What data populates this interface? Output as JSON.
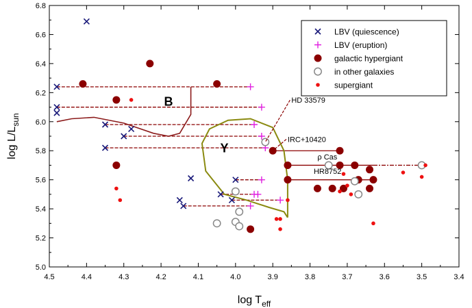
{
  "chart_data": {
    "type": "scatter",
    "xlabel": {
      "main": "log T",
      "sub": "eff"
    },
    "ylabel": {
      "main": "log L/L",
      "sub": "sun"
    },
    "xlim": [
      4.5,
      3.4
    ],
    "ylim": [
      5.0,
      6.8
    ],
    "x_reversed": true,
    "xticks": [
      4.5,
      4.4,
      4.3,
      4.2,
      4.1,
      4.0,
      3.9,
      3.8,
      3.7,
      3.6,
      3.5,
      3.4
    ],
    "xtick_labels": [
      "4.5",
      "4.4",
      "4.3",
      "4.2",
      "4.1",
      "4.0",
      "3.9",
      "3.8",
      "3.7",
      "3.6",
      "3.5",
      "3.4"
    ],
    "yticks": [
      5.0,
      5.2,
      5.4,
      5.6,
      5.8,
      6.0,
      6.2,
      6.4,
      6.6,
      6.8
    ],
    "ytick_labels": [
      "5.0",
      "5.2",
      "5.4",
      "5.6",
      "5.8",
      "6.0",
      "6.2",
      "6.4",
      "6.6",
      "6.8"
    ],
    "legend_position": "top-right",
    "colors": {
      "lbv_quiescence": "#1a1a7a",
      "lbv_eruption": "#e020e0",
      "galactic_hypergiant": "#8b0000",
      "other_galaxies": "#888888",
      "supergiant": "#ee1111",
      "region_b": "#8b1a1a",
      "region_y": "#8a8a10",
      "text": "#000000"
    },
    "series": [
      {
        "name": "LBV (quiescence)",
        "marker": "x",
        "points": [
          [
            4.48,
            6.24
          ],
          [
            4.48,
            6.1
          ],
          [
            4.48,
            6.06
          ],
          [
            4.4,
            6.69
          ],
          [
            4.35,
            5.98
          ],
          [
            4.35,
            5.82
          ],
          [
            4.3,
            5.9
          ],
          [
            4.28,
            5.95
          ],
          [
            4.15,
            5.46
          ],
          [
            4.14,
            5.42
          ],
          [
            4.12,
            5.61
          ],
          [
            4.04,
            5.5
          ],
          [
            4.01,
            5.46
          ],
          [
            4.0,
            5.6
          ]
        ]
      },
      {
        "name": "LBV (eruption)",
        "marker": "plus",
        "points": [
          [
            3.96,
            6.24
          ],
          [
            3.93,
            6.1
          ],
          [
            3.95,
            5.98
          ],
          [
            3.93,
            5.9
          ],
          [
            3.92,
            5.82
          ],
          [
            3.93,
            5.6
          ],
          [
            3.95,
            5.5
          ],
          [
            3.94,
            5.5
          ],
          [
            3.96,
            5.42
          ],
          [
            3.88,
            5.46
          ]
        ]
      },
      {
        "name": "galactic hypergiant",
        "marker": "filled-circle",
        "points": [
          [
            4.41,
            6.26
          ],
          [
            4.32,
            6.15
          ],
          [
            4.32,
            5.7
          ],
          [
            4.23,
            6.4
          ],
          [
            4.05,
            6.26
          ],
          [
            3.9,
            5.8
          ],
          [
            3.86,
            5.7
          ],
          [
            3.86,
            5.6
          ],
          [
            3.72,
            5.8
          ],
          [
            3.72,
            5.7
          ],
          [
            3.68,
            5.7
          ],
          [
            3.64,
            5.67
          ],
          [
            3.63,
            5.6
          ],
          [
            3.67,
            5.6
          ],
          [
            3.78,
            5.54
          ],
          [
            3.74,
            5.54
          ],
          [
            3.71,
            5.54
          ],
          [
            3.64,
            5.54
          ],
          [
            3.96,
            5.26
          ]
        ]
      },
      {
        "name": "in other galaxies",
        "marker": "open-circle",
        "points": [
          [
            4.05,
            5.3
          ],
          [
            4.0,
            5.52
          ],
          [
            3.99,
            5.38
          ],
          [
            4.0,
            5.31
          ],
          [
            3.99,
            5.28
          ],
          [
            3.92,
            5.86
          ],
          [
            3.75,
            5.7
          ],
          [
            3.68,
            5.59
          ],
          [
            3.67,
            5.5
          ],
          [
            3.5,
            5.7
          ]
        ]
      },
      {
        "name": "supergiant",
        "marker": "small-dot",
        "points": [
          [
            4.28,
            6.15
          ],
          [
            4.32,
            5.54
          ],
          [
            4.31,
            5.46
          ],
          [
            3.89,
            5.33
          ],
          [
            3.88,
            5.33
          ],
          [
            3.88,
            5.26
          ],
          [
            3.86,
            5.46
          ],
          [
            3.71,
            5.64
          ],
          [
            3.72,
            5.52
          ],
          [
            3.7,
            5.56
          ],
          [
            3.69,
            5.5
          ],
          [
            3.63,
            5.3
          ],
          [
            3.55,
            5.65
          ],
          [
            3.49,
            5.7
          ],
          [
            3.5,
            5.62
          ]
        ]
      }
    ],
    "excursions": [
      {
        "from": [
          4.48,
          6.24
        ],
        "to": [
          3.96,
          6.24
        ]
      },
      {
        "from": [
          4.48,
          6.1
        ],
        "to": [
          3.93,
          6.1
        ]
      },
      {
        "from": [
          4.35,
          5.98
        ],
        "to": [
          3.95,
          5.98
        ]
      },
      {
        "from": [
          4.3,
          5.9
        ],
        "to": [
          3.93,
          5.9
        ]
      },
      {
        "from": [
          4.35,
          5.82
        ],
        "to": [
          3.92,
          5.82
        ]
      },
      {
        "from": [
          4.0,
          5.6
        ],
        "to": [
          3.93,
          5.6
        ]
      },
      {
        "from": [
          4.04,
          5.5
        ],
        "to": [
          3.95,
          5.5
        ]
      },
      {
        "from": [
          4.01,
          5.46
        ],
        "to": [
          3.88,
          5.46
        ]
      },
      {
        "from": [
          4.14,
          5.42
        ],
        "to": [
          3.96,
          5.42
        ]
      }
    ],
    "solid_lines": [
      {
        "from": [
          3.86,
          5.7
        ],
        "to": [
          3.63,
          5.7
        ]
      },
      {
        "from": [
          3.86,
          5.6
        ],
        "to": [
          3.63,
          5.6
        ]
      },
      {
        "from": [
          3.9,
          5.8
        ],
        "to": [
          3.72,
          5.8
        ]
      }
    ],
    "dashdot_lines": [
      {
        "from": [
          3.63,
          5.7
        ],
        "to": [
          3.5,
          5.7
        ]
      }
    ],
    "region_b_boundary": [
      [
        4.48,
        6.0
      ],
      [
        4.44,
        6.02
      ],
      [
        4.38,
        6.03
      ],
      [
        4.3,
        5.99
      ],
      [
        4.22,
        5.92
      ],
      [
        4.18,
        5.9
      ],
      [
        4.15,
        5.92
      ],
      [
        4.12,
        6.05
      ],
      [
        4.12,
        6.24
      ]
    ],
    "region_y_boundary": [
      [
        3.86,
        5.34
      ],
      [
        3.86,
        5.6
      ],
      [
        3.87,
        5.8
      ],
      [
        3.9,
        5.96
      ],
      [
        3.96,
        6.02
      ],
      [
        4.02,
        6.01
      ],
      [
        4.07,
        5.95
      ],
      [
        4.09,
        5.85
      ],
      [
        4.08,
        5.66
      ],
      [
        4.03,
        5.5
      ],
      [
        3.97,
        5.46
      ],
      [
        3.91,
        5.41
      ],
      [
        3.87,
        5.38
      ],
      [
        3.86,
        5.34
      ]
    ],
    "region_labels": [
      {
        "text": "B",
        "at": [
          4.18,
          6.11
        ]
      },
      {
        "text": "Y",
        "at": [
          4.03,
          5.79
        ]
      }
    ],
    "annotations": [
      {
        "text": "HD 33579",
        "at": [
          3.85,
          6.13
        ],
        "pointer_to": [
          3.92,
          5.86
        ]
      },
      {
        "text": "IRC+10420",
        "at": [
          3.86,
          5.86
        ],
        "pointer_to": [
          3.9,
          5.8
        ]
      },
      {
        "text": "ρ Cas",
        "at": [
          3.78,
          5.74
        ],
        "pointer_to": null
      },
      {
        "text": "HR8752",
        "at": [
          3.79,
          5.64
        ],
        "pointer_to": null
      }
    ]
  }
}
